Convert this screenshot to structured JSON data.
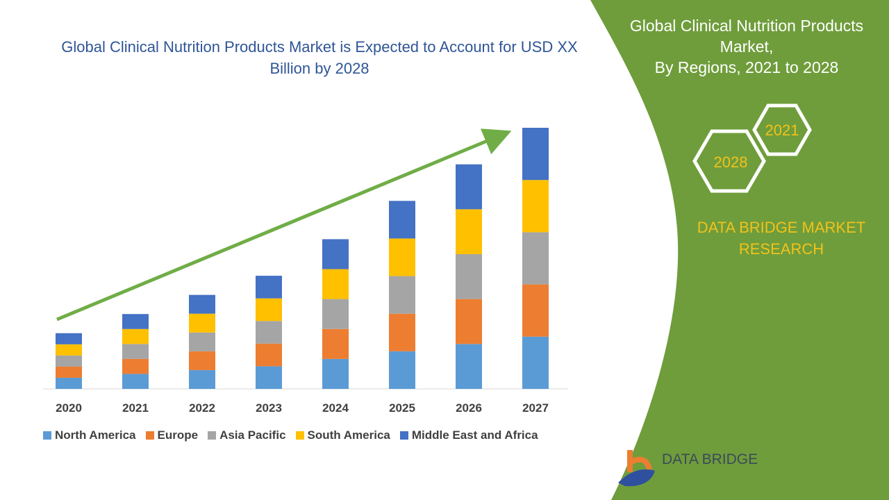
{
  "title": "Global Clinical Nutrition Products Market is Expected to Account for USD XX Billion by 2028",
  "panel": {
    "title_lines": [
      "Global Clinical Nutrition Products",
      "Market,",
      "By Regions, 2021 to 2028"
    ],
    "hex_labels": [
      "2021",
      "2028"
    ],
    "brand_lines": [
      "DATA BRIDGE MARKET",
      "RESEARCH"
    ],
    "logo_text": "DATA BRIDGE",
    "accent": "#6f9d3b",
    "brand_color": "#f2c21b"
  },
  "chart_data": {
    "type": "bar",
    "stacked": true,
    "title": "Global Clinical Nutrition Products Market is Expected to Account for USD XX Billion by 2028",
    "categories": [
      "2020",
      "2021",
      "2022",
      "2023",
      "2024",
      "2025",
      "2026",
      "2027"
    ],
    "series": [
      {
        "name": "North America",
        "color": "#5b9bd5",
        "values": [
          3.2,
          4.3,
          5.4,
          6.5,
          8.6,
          10.8,
          12.9,
          15
        ]
      },
      {
        "name": "Europe",
        "color": "#ed7d31",
        "values": [
          3.2,
          4.3,
          5.4,
          6.5,
          8.6,
          10.8,
          12.9,
          15
        ]
      },
      {
        "name": "Asia Pacific",
        "color": "#a5a5a5",
        "values": [
          3.2,
          4.3,
          5.4,
          6.5,
          8.6,
          10.8,
          12.9,
          15
        ]
      },
      {
        "name": "South America",
        "color": "#ffc000",
        "values": [
          3.2,
          4.3,
          5.4,
          6.5,
          8.6,
          10.8,
          12.9,
          15
        ]
      },
      {
        "name": "Middle East and Africa",
        "color": "#4472c4",
        "values": [
          3.2,
          4.3,
          5.4,
          6.5,
          8.6,
          10.8,
          12.9,
          15
        ]
      }
    ],
    "ylim": [
      0,
      75
    ],
    "grid": false,
    "legend_position": "bottom",
    "trend_arrow": true,
    "trend_color": "#70ad47"
  }
}
